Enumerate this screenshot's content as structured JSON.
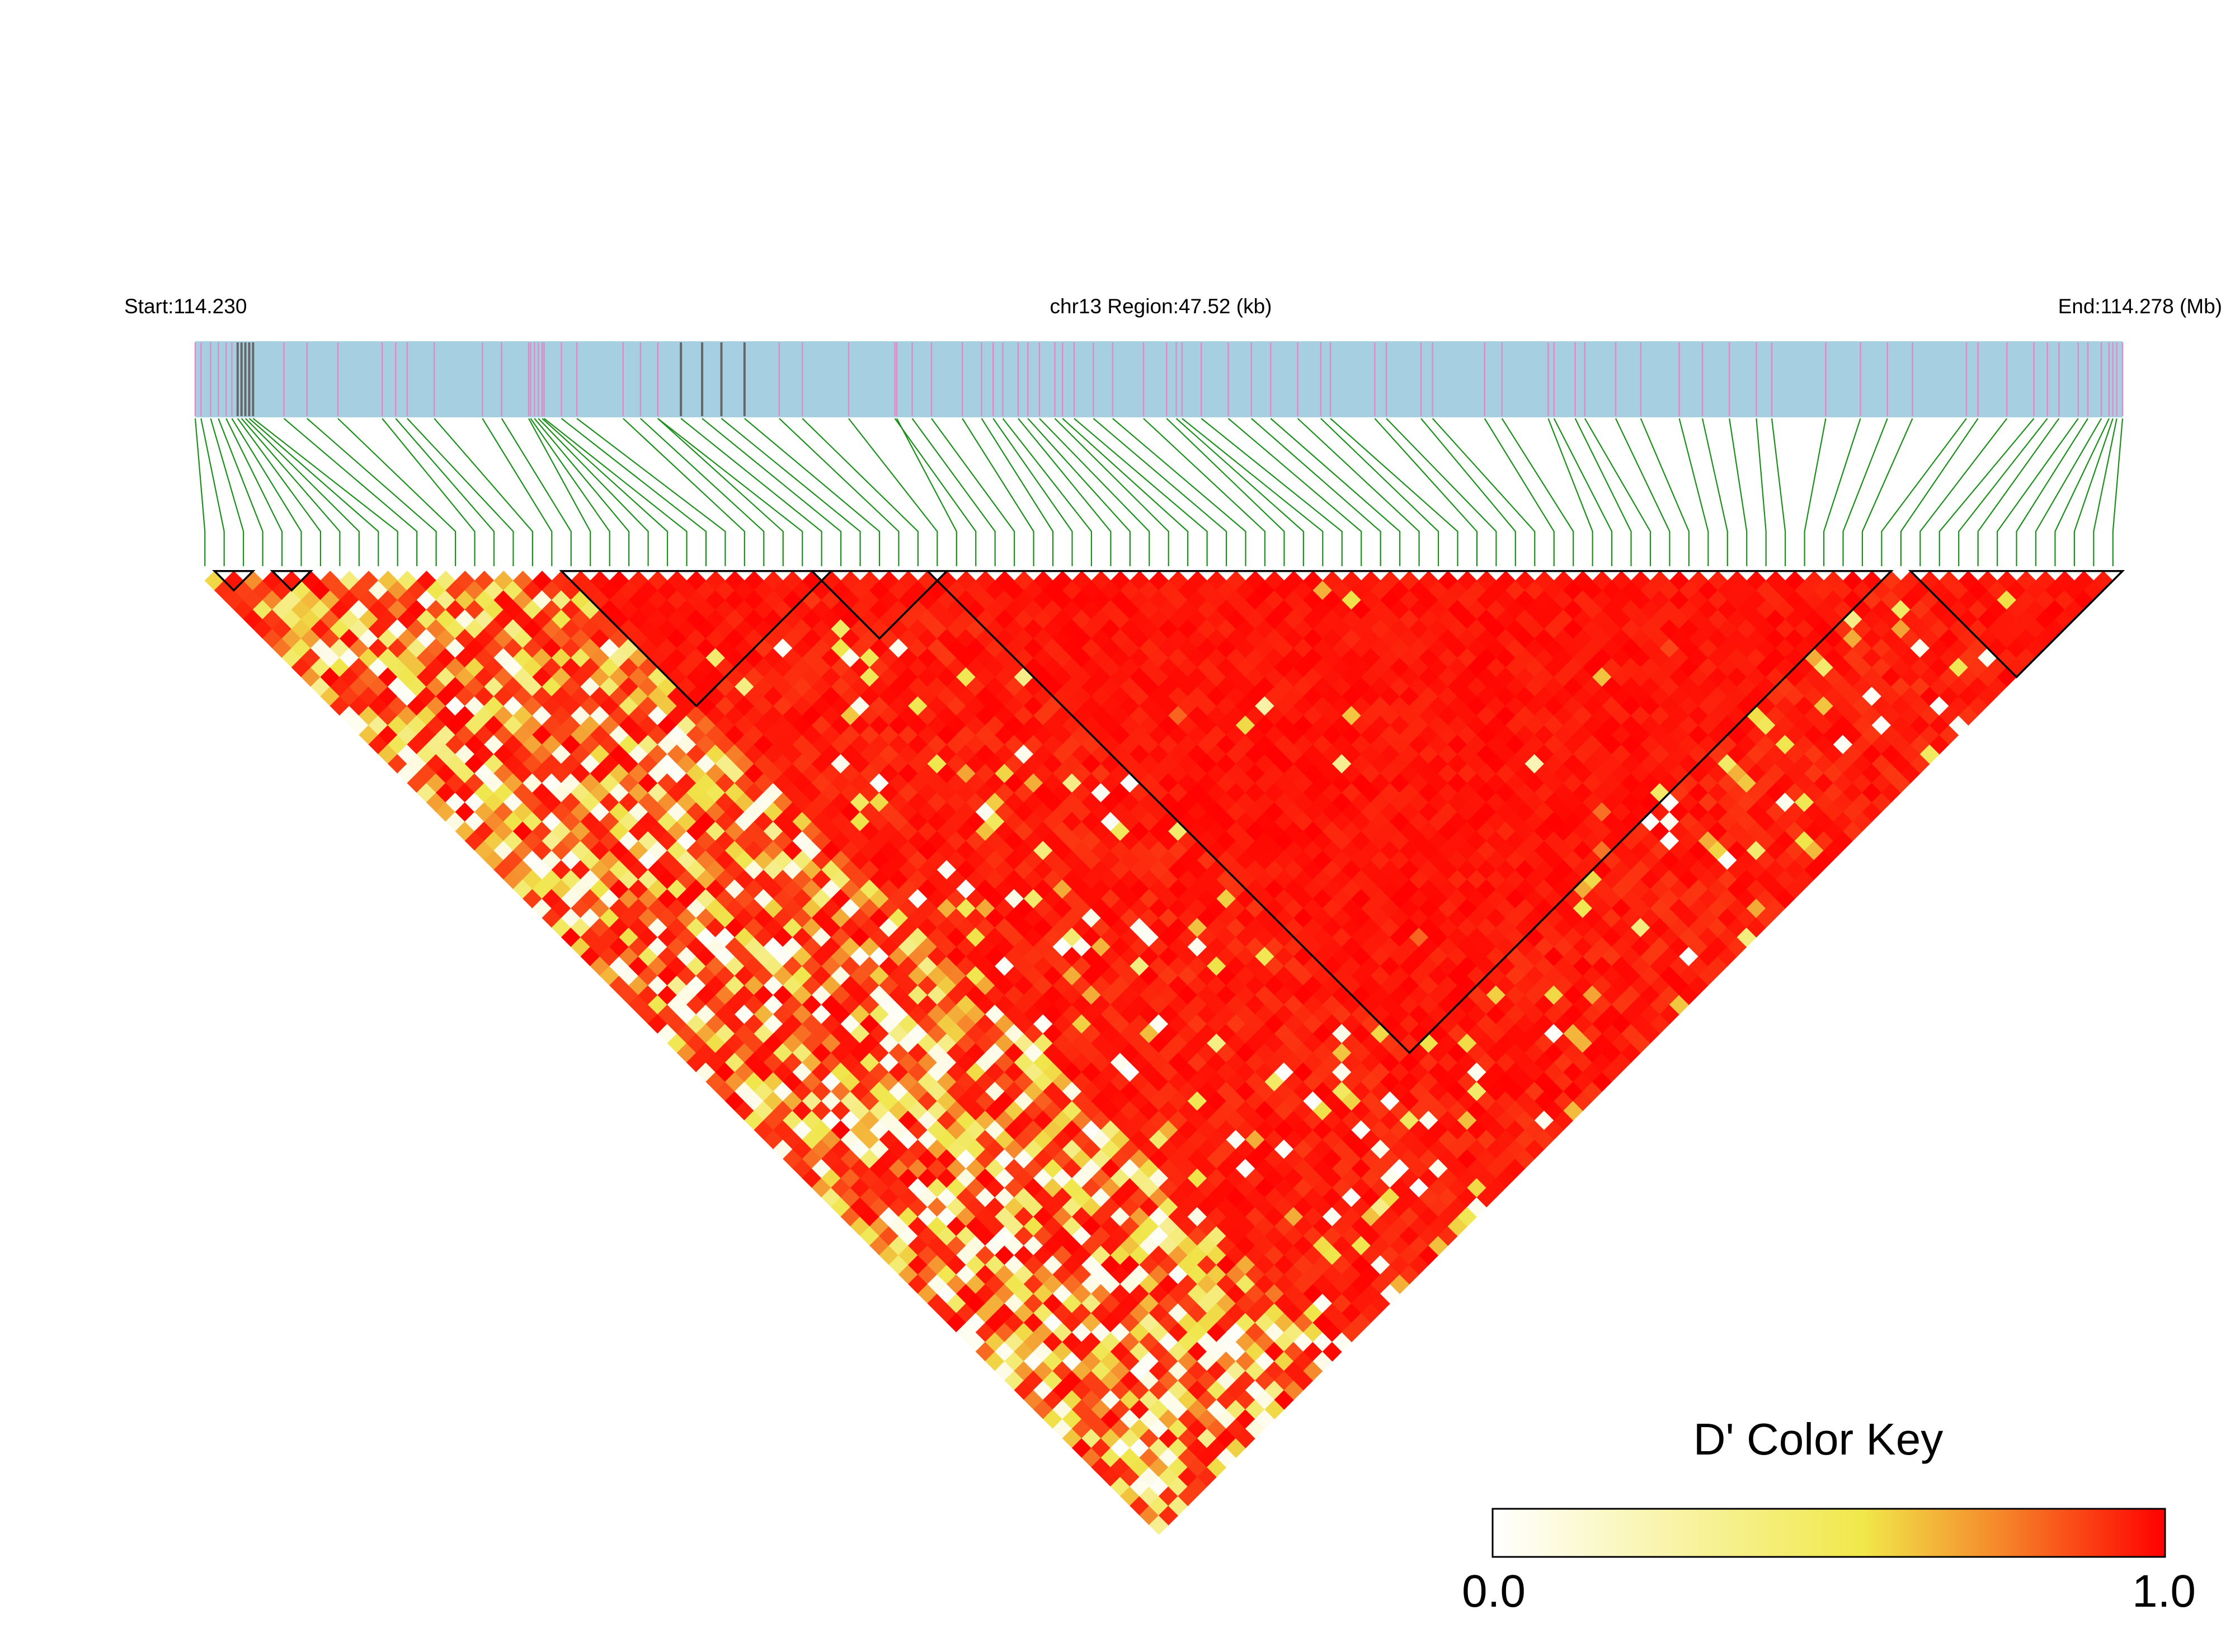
{
  "chart_data": {
    "type": "heatmap",
    "subtype": "linkage-disequilibrium-triangle",
    "header": {
      "start_label": "Start:114.230",
      "region_label": "chr13 Region:47.52 (kb)",
      "end_label": "End:114.278 (Mb)"
    },
    "region": {
      "chromosome": "chr13",
      "start_mb": 114.23,
      "end_mb": 114.278,
      "length_kb": 47.52
    },
    "snp_count": 100,
    "snp_positions_fraction": [
      0,
      0.003,
      0.008,
      0.012,
      0.016,
      0.019,
      0.022,
      0.024,
      0.026,
      0.028,
      0.03,
      0.046,
      0.058,
      0.074,
      0.097,
      0.104,
      0.11,
      0.124,
      0.149,
      0.159,
      0.173,
      0.174,
      0.176,
      0.178,
      0.18,
      0.181,
      0.19,
      0.198,
      0.222,
      0.231,
      0.24,
      0.24,
      0.252,
      0.263,
      0.273,
      0.285,
      0.303,
      0.315,
      0.339,
      0.364,
      0.363,
      0.372,
      0.382,
      0.398,
      0.408,
      0.414,
      0.419,
      0.427,
      0.432,
      0.438,
      0.446,
      0.45,
      0.456,
      0.466,
      0.476,
      0.492,
      0.504,
      0.509,
      0.512,
      0.522,
      0.536,
      0.548,
      0.558,
      0.572,
      0.584,
      0.589,
      0.612,
      0.618,
      0.636,
      0.642,
      0.669,
      0.678,
      0.702,
      0.705,
      0.716,
      0.721,
      0.737,
      0.75,
      0.77,
      0.782,
      0.796,
      0.81,
      0.818,
      0.846,
      0.864,
      0.878,
      0.891,
      0.919,
      0.925,
      0.94,
      0.954,
      0.961,
      0.967,
      0.977,
      0.982,
      0.989,
      0.993,
      0.995,
      0.997,
      1.0
    ],
    "haplotype_blocks": [
      {
        "snp_range": [
          1,
          2
        ]
      },
      {
        "snp_range": [
          4,
          5
        ]
      },
      {
        "snp_range": [
          19,
          32
        ]
      },
      {
        "snp_range": [
          32,
          38
        ]
      },
      {
        "snp_range": [
          38,
          87
        ]
      },
      {
        "snp_range": [
          89,
          99
        ]
      }
    ],
    "color_key": {
      "title": "D' Color Key",
      "min_label": "0.0",
      "max_label": "1.0",
      "range": [
        0,
        1
      ],
      "colors": [
        "#ffffff",
        "#f3e84a",
        "#ff0000"
      ]
    },
    "colors": {
      "gene_track": "#a6cfe2",
      "snp_marker": "#e28ac8",
      "dense_marker": "#666666",
      "connector": "#1a8f1a",
      "block_outline": "#000000"
    }
  }
}
